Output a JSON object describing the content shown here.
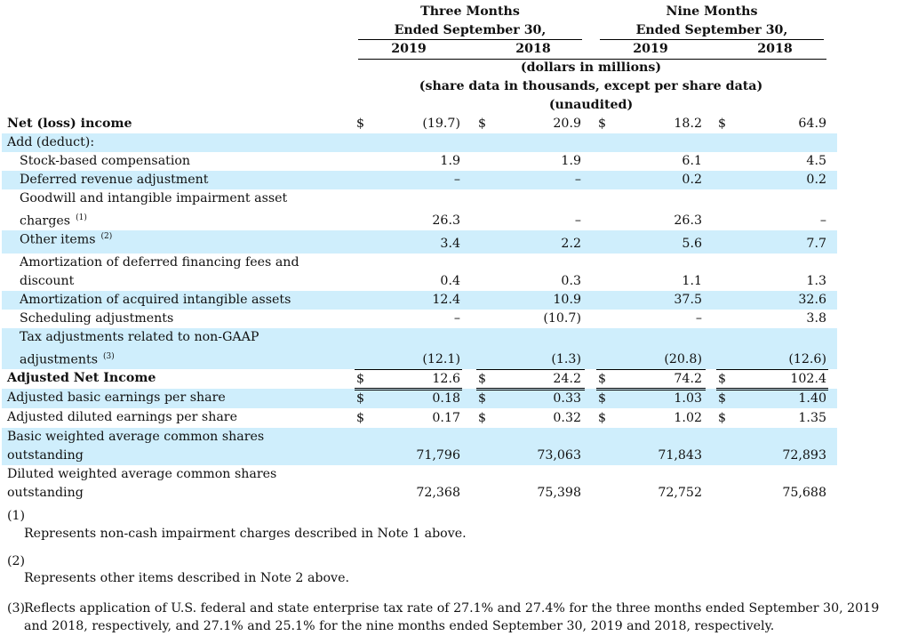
{
  "header": {
    "three_months": [
      "Three Months",
      "Ended September 30,"
    ],
    "nine_months": [
      "Nine Months",
      "Ended September 30,"
    ],
    "years": [
      "2019",
      "2018",
      "2019",
      "2018"
    ],
    "units": [
      "(dollars in millions)",
      "(share data in thousands, except per share data)",
      "(unaudited)"
    ]
  },
  "rows": [
    {
      "label": "Net (loss) income",
      "bold": true,
      "dollar": true,
      "values": [
        "(19.7)",
        "20.9",
        "18.2",
        "64.9"
      ]
    },
    {
      "label": "Add (deduct):",
      "values": [
        "",
        "",
        "",
        ""
      ]
    },
    {
      "label": "Stock-based compensation",
      "values": [
        "1.9",
        "1.9",
        "6.1",
        "4.5"
      ]
    },
    {
      "label": "Deferred revenue adjustment",
      "values": [
        "–",
        "–",
        "0.2",
        "0.2"
      ]
    },
    {
      "label": "Goodwill and intangible impairment asset",
      "label2": "charges",
      "sup": "(1)",
      "values": [
        "26.3",
        "–",
        "26.3",
        "–"
      ]
    },
    {
      "label": "Other items",
      "sup": "(2)",
      "values": [
        "3.4",
        "2.2",
        "5.6",
        "7.7"
      ]
    },
    {
      "label": "Amortization of deferred financing fees and",
      "label2": "discount",
      "values": [
        "0.4",
        "0.3",
        "1.1",
        "1.3"
      ]
    },
    {
      "label": "Amortization of acquired intangible assets",
      "values": [
        "12.4",
        "10.9",
        "37.5",
        "32.6"
      ]
    },
    {
      "label": "Scheduling adjustments",
      "values": [
        "–",
        "(10.7)",
        "–",
        "3.8"
      ]
    },
    {
      "label": "Tax adjustments related to non-GAAP",
      "label2": "adjustments",
      "sup": "(3)",
      "values": [
        "(12.1)",
        "(1.3)",
        "(20.8)",
        "(12.6)"
      ]
    },
    {
      "label": "Adjusted Net Income",
      "bold": true,
      "dollar": true,
      "values": [
        "12.6",
        "24.2",
        "74.2",
        "102.4"
      ]
    },
    {
      "label": "Adjusted basic earnings per share",
      "dollar": true,
      "values": [
        "0.18",
        "0.33",
        "1.03",
        "1.40"
      ]
    },
    {
      "label": "Adjusted diluted earnings per share",
      "dollar": true,
      "values": [
        "0.17",
        "0.32",
        "1.02",
        "1.35"
      ]
    },
    {
      "label": "Basic weighted average common shares",
      "label2": "outstanding",
      "values": [
        "71,796",
        "73,063",
        "71,843",
        "72,893"
      ]
    },
    {
      "label": "Diluted weighted average common shares",
      "label2": "outstanding",
      "values": [
        "72,368",
        "75,398",
        "72,752",
        "75,688"
      ]
    }
  ],
  "dollar_sign": "$",
  "footnotes": [
    {
      "marker": "(1)",
      "text": "Represents non-cash impairment charges described in Note 1 above."
    },
    {
      "marker": "(2)",
      "text": "Represents other items described in Note 2 above."
    },
    {
      "marker": "(3)",
      "text": "Reflects application of U.S. federal and state enterprise tax rate of 27.1% and 27.4% for the three months ended September 30, 2019",
      "text2": "and 2018, respectively, and 27.1% and 25.1% for the nine months ended September 30, 2019 and 2018, respectively."
    }
  ]
}
